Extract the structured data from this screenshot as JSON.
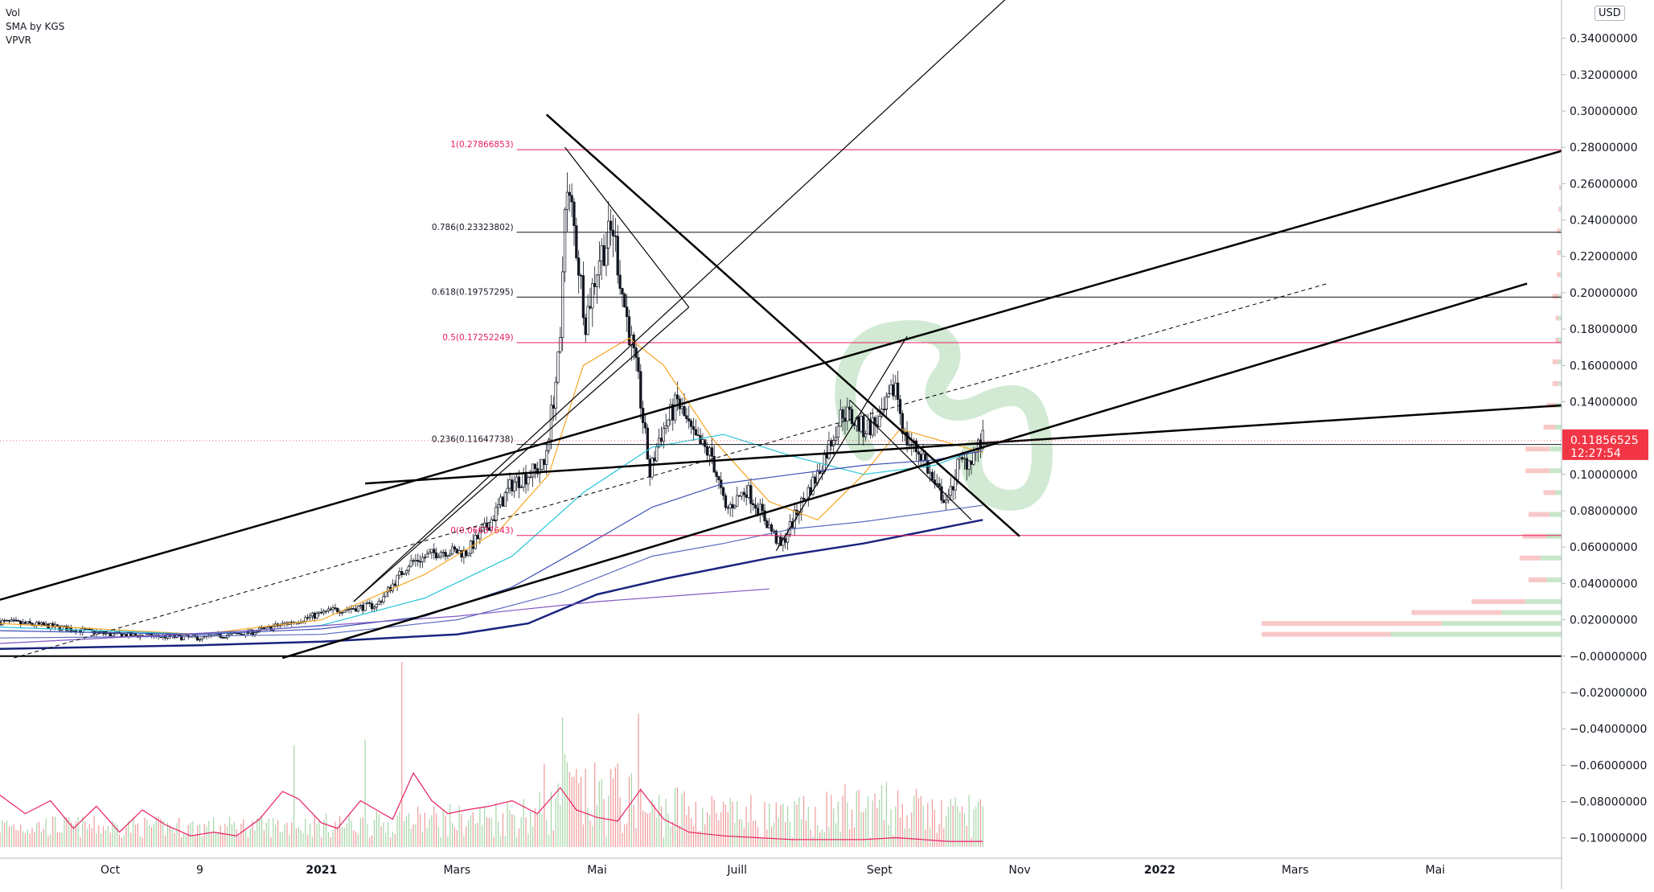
{
  "legend": [
    "Vol",
    "SMA by KGS",
    "VPVR"
  ],
  "currency": "USD",
  "last_price": {
    "value": 0.11856525,
    "label": "0.11856525",
    "countdown": "12:27:54",
    "color": "#f23645"
  },
  "colors": {
    "up": "#131722",
    "down": "#131722",
    "upVol": "#a5d6a7",
    "downVol": "#ef9a9a",
    "fib": "#e91e63",
    "fibBlack": "#131722",
    "trendline": "#000000",
    "volSma": "#e91e63",
    "vpUp": "#c8e6c9",
    "vpDown": "#f8c8c8"
  },
  "chart_data": {
    "type": "candlestick",
    "title": "",
    "y_axis_ticks": [
      "0.34000000",
      "0.32000000",
      "0.30000000",
      "0.28000000",
      "0.26000000",
      "0.24000000",
      "0.22000000",
      "0.20000000",
      "0.18000000",
      "0.16000000",
      "0.14000000",
      "0.12000000",
      "0.10000000",
      "0.08000000",
      "0.06000000",
      "0.04000000",
      "0.02000000",
      "−0.00000000",
      "−0.02000000",
      "−0.04000000",
      "−0.06000000",
      "−0.08000000",
      "−0.10000000"
    ],
    "x_axis_ticks": [
      {
        "label": "Oct",
        "date": "2020-10-01"
      },
      {
        "label": "9",
        "date": "2020-11-09"
      },
      {
        "label": "2021",
        "date": "2021-01-01"
      },
      {
        "label": "Mars",
        "date": "2021-03-01"
      },
      {
        "label": "Mai",
        "date": "2021-05-01"
      },
      {
        "label": "Juill",
        "date": "2021-07-01"
      },
      {
        "label": "Sept",
        "date": "2021-09-01"
      },
      {
        "label": "Nov",
        "date": "2021-11-01"
      },
      {
        "label": "2022",
        "date": "2022-01-01"
      },
      {
        "label": "Mars",
        "date": "2022-03-01"
      },
      {
        "label": "Mai",
        "date": "2022-05-01"
      }
    ],
    "ylim": [
      -0.105,
      0.35
    ],
    "x_range": [
      "2020-08-14",
      "2022-06-25"
    ],
    "price_path": [
      [
        "2020-08-14",
        0.019
      ],
      [
        "2020-09-01",
        0.017
      ],
      [
        "2020-10-01",
        0.012
      ],
      [
        "2020-11-09",
        0.01
      ],
      [
        "2020-12-01",
        0.013
      ],
      [
        "2020-12-20",
        0.019
      ],
      [
        "2021-01-05",
        0.025
      ],
      [
        "2021-01-25",
        0.028
      ],
      [
        "2021-02-08",
        0.051
      ],
      [
        "2021-02-22",
        0.058
      ],
      [
        "2021-03-05",
        0.057
      ],
      [
        "2021-03-15",
        0.073
      ],
      [
        "2021-03-25",
        0.095
      ],
      [
        "2021-04-08",
        0.105
      ],
      [
        "2021-04-15",
        0.17
      ],
      [
        "2021-04-17",
        0.255
      ],
      [
        "2021-04-20",
        0.245
      ],
      [
        "2021-04-26",
        0.185
      ],
      [
        "2021-05-02",
        0.22
      ],
      [
        "2021-05-08",
        0.235
      ],
      [
        "2021-05-12",
        0.2
      ],
      [
        "2021-05-19",
        0.15
      ],
      [
        "2021-05-24",
        0.1
      ],
      [
        "2021-05-28",
        0.12
      ],
      [
        "2021-06-05",
        0.14
      ],
      [
        "2021-06-12",
        0.12
      ],
      [
        "2021-06-20",
        0.11
      ],
      [
        "2021-06-26",
        0.08
      ],
      [
        "2021-07-05",
        0.092
      ],
      [
        "2021-07-12",
        0.078
      ],
      [
        "2021-07-20",
        0.06
      ],
      [
        "2021-07-28",
        0.082
      ],
      [
        "2021-08-05",
        0.1
      ],
      [
        "2021-08-16",
        0.135
      ],
      [
        "2021-08-25",
        0.125
      ],
      [
        "2021-09-02",
        0.13
      ],
      [
        "2021-09-08",
        0.15
      ],
      [
        "2021-09-12",
        0.12
      ],
      [
        "2021-09-20",
        0.11
      ],
      [
        "2021-09-25",
        0.093
      ],
      [
        "2021-10-01",
        0.085
      ],
      [
        "2021-10-05",
        0.105
      ],
      [
        "2021-10-10",
        0.108
      ],
      [
        "2021-10-16",
        0.1186
      ]
    ],
    "moving_averages": [
      {
        "color": "#f5a623",
        "points": [
          [
            "2020-08-14",
            0.018
          ],
          [
            "2020-11-09",
            0.012
          ],
          [
            "2021-01-01",
            0.02
          ],
          [
            "2021-02-15",
            0.045
          ],
          [
            "2021-03-20",
            0.07
          ],
          [
            "2021-04-10",
            0.1
          ],
          [
            "2021-04-25",
            0.16
          ],
          [
            "2021-05-15",
            0.175
          ],
          [
            "2021-05-30",
            0.16
          ],
          [
            "2021-06-20",
            0.12
          ],
          [
            "2021-07-15",
            0.085
          ],
          [
            "2021-08-05",
            0.075
          ],
          [
            "2021-08-25",
            0.1
          ],
          [
            "2021-09-10",
            0.125
          ],
          [
            "2021-10-16",
            0.112
          ]
        ]
      },
      {
        "color": "#26c6da",
        "points": [
          [
            "2020-08-14",
            0.016
          ],
          [
            "2020-11-09",
            0.012
          ],
          [
            "2021-01-01",
            0.017
          ],
          [
            "2021-02-15",
            0.032
          ],
          [
            "2021-03-25",
            0.055
          ],
          [
            "2021-04-25",
            0.09
          ],
          [
            "2021-05-25",
            0.115
          ],
          [
            "2021-06-25",
            0.122
          ],
          [
            "2021-07-25",
            0.11
          ],
          [
            "2021-08-25",
            0.1
          ],
          [
            "2021-09-25",
            0.105
          ],
          [
            "2021-10-16",
            0.115
          ]
        ]
      },
      {
        "color": "#3f51b5",
        "points": [
          [
            "2020-08-14",
            0.014
          ],
          [
            "2020-11-09",
            0.012
          ],
          [
            "2021-01-01",
            0.015
          ],
          [
            "2021-02-15",
            0.022
          ],
          [
            "2021-03-25",
            0.038
          ],
          [
            "2021-04-25",
            0.06
          ],
          [
            "2021-05-25",
            0.082
          ],
          [
            "2021-06-25",
            0.095
          ],
          [
            "2021-07-25",
            0.1
          ],
          [
            "2021-08-25",
            0.105
          ],
          [
            "2021-09-25",
            0.108
          ],
          [
            "2021-10-16",
            0.113
          ]
        ]
      },
      {
        "color": "#5c6bc0",
        "points": [
          [
            "2020-08-14",
            0.01
          ],
          [
            "2020-11-09",
            0.011
          ],
          [
            "2021-01-01",
            0.012
          ],
          [
            "2021-03-01",
            0.02
          ],
          [
            "2021-04-15",
            0.035
          ],
          [
            "2021-05-25",
            0.055
          ],
          [
            "2021-06-25",
            0.062
          ],
          [
            "2021-07-25",
            0.07
          ],
          [
            "2021-08-25",
            0.074
          ],
          [
            "2021-10-16",
            0.083
          ]
        ]
      },
      {
        "color": "#1a237e",
        "points": [
          [
            "2020-08-14",
            0.004
          ],
          [
            "2020-11-09",
            0.006
          ],
          [
            "2021-01-01",
            0.008
          ],
          [
            "2021-03-01",
            0.012
          ],
          [
            "2021-04-01",
            0.018
          ],
          [
            "2021-05-01",
            0.034
          ],
          [
            "2021-06-01",
            0.043
          ],
          [
            "2021-07-15",
            0.054
          ],
          [
            "2021-08-25",
            0.062
          ],
          [
            "2021-10-16",
            0.075
          ]
        ]
      },
      {
        "color": "#7e57c2",
        "points": [
          [
            "2020-08-14",
            0.007
          ],
          [
            "2020-12-01",
            0.014
          ],
          [
            "2021-03-01",
            0.022
          ],
          [
            "2021-05-01",
            0.03
          ],
          [
            "2021-07-15",
            0.037
          ]
        ]
      }
    ],
    "fib_levels": [
      {
        "label": "1(0.27866853)",
        "value": 0.27866853,
        "color": "#e91e63"
      },
      {
        "label": "0.786(0.23323802)",
        "value": 0.23323802,
        "color": "#131722"
      },
      {
        "label": "0.618(0.19757295)",
        "value": 0.19757295,
        "color": "#131722"
      },
      {
        "label": "0.5(0.17252249)",
        "value": 0.17252249,
        "color": "#e91e63"
      },
      {
        "label": "0.236(0.11647738)",
        "value": 0.11647738,
        "color": "#131722"
      },
      {
        "label": "0(0.06637643)",
        "value": 0.06637643,
        "color": "#e91e63"
      }
    ],
    "fib_start_date": "2021-04-17",
    "trendlines": [
      {
        "p1": [
          "2020-08-14",
          0.031
        ],
        "p2": [
          "2022-06-25",
          0.278
        ],
        "width": 2.5,
        "style": "solid"
      },
      {
        "p1": [
          "2021-01-20",
          0.095
        ],
        "p2": [
          "2022-06-25",
          0.138
        ],
        "width": 2.5,
        "style": "solid"
      },
      {
        "p1": [
          "2020-12-15",
          -0.001
        ],
        "p2": [
          "2022-06-10",
          0.205
        ],
        "width": 2.5,
        "style": "solid"
      },
      {
        "p1": [
          "2021-04-09",
          0.298
        ],
        "p2": [
          "2021-11-01",
          0.066
        ],
        "width": 2.5,
        "style": "solid"
      },
      {
        "p1": [
          "2020-08-20",
          -0.001
        ],
        "p2": [
          "2022-03-15",
          0.205
        ],
        "width": 1,
        "style": "dashed"
      },
      {
        "p1": [
          "2021-01-15",
          0.03
        ],
        "p2": [
          "2021-12-15",
          0.42
        ],
        "width": 1.2,
        "style": "solid"
      },
      {
        "p1": [
          "2021-04-17",
          0.28
        ],
        "p2": [
          "2021-06-10",
          0.192
        ],
        "width": 1.2,
        "style": "solid"
      },
      {
        "p1": [
          "2021-06-10",
          0.192
        ],
        "p2": [
          "2021-01-15",
          0.03
        ],
        "width": 1.2,
        "style": "solid"
      },
      {
        "p1": [
          "2021-07-18",
          0.058
        ],
        "p2": [
          "2021-09-13",
          0.176
        ],
        "width": 1.2,
        "style": "solid"
      },
      {
        "p1": [
          "2021-08-19",
          0.141
        ],
        "p2": [
          "2021-10-11",
          0.075
        ],
        "width": 1.2,
        "style": "solid"
      }
    ],
    "zero_line": 0,
    "volume": {
      "ylim_fraction": 0.17,
      "spikes": [
        [
          "2021-02-05",
          1.0
        ],
        [
          "2021-04-16",
          0.7
        ],
        [
          "2021-05-19",
          0.72
        ],
        [
          "2020-12-20",
          0.55
        ],
        [
          "2021-01-20",
          0.58
        ],
        [
          "2021-04-08",
          0.45
        ],
        [
          "2021-09-08",
          0.22
        ]
      ],
      "sma_points": [
        [
          "2020-08-14",
          0.28
        ],
        [
          "2020-08-25",
          0.18
        ],
        [
          "2020-09-05",
          0.25
        ],
        [
          "2020-09-15",
          0.1
        ],
        [
          "2020-09-25",
          0.22
        ],
        [
          "2020-10-05",
          0.08
        ],
        [
          "2020-10-15",
          0.2
        ],
        [
          "2020-10-25",
          0.12
        ],
        [
          "2020-11-05",
          0.06
        ],
        [
          "2020-11-15",
          0.08
        ],
        [
          "2020-11-25",
          0.06
        ],
        [
          "2020-12-05",
          0.15
        ],
        [
          "2020-12-15",
          0.3
        ],
        [
          "2020-12-22",
          0.26
        ],
        [
          "2021-01-01",
          0.13
        ],
        [
          "2021-01-08",
          0.1
        ],
        [
          "2021-01-18",
          0.25
        ],
        [
          "2021-01-25",
          0.2
        ],
        [
          "2021-02-01",
          0.15
        ],
        [
          "2021-02-10",
          0.4
        ],
        [
          "2021-02-18",
          0.25
        ],
        [
          "2021-02-25",
          0.18
        ],
        [
          "2021-03-05",
          0.2
        ],
        [
          "2021-03-15",
          0.22
        ],
        [
          "2021-03-25",
          0.25
        ],
        [
          "2021-04-05",
          0.18
        ],
        [
          "2021-04-15",
          0.32
        ],
        [
          "2021-04-22",
          0.2
        ],
        [
          "2021-05-01",
          0.16
        ],
        [
          "2021-05-10",
          0.14
        ],
        [
          "2021-05-20",
          0.31
        ],
        [
          "2021-05-30",
          0.15
        ],
        [
          "2021-06-10",
          0.08
        ],
        [
          "2021-06-25",
          0.06
        ],
        [
          "2021-07-10",
          0.05
        ],
        [
          "2021-07-25",
          0.04
        ],
        [
          "2021-08-10",
          0.04
        ],
        [
          "2021-08-25",
          0.04
        ],
        [
          "2021-09-08",
          0.05
        ],
        [
          "2021-09-20",
          0.04
        ],
        [
          "2021-10-01",
          0.03
        ],
        [
          "2021-10-16",
          0.03
        ]
      ]
    },
    "volume_profile": [
      {
        "price": 0.012,
        "up": 0.57,
        "down": 0.43
      },
      {
        "price": 0.018,
        "up": 0.4,
        "down": 0.6
      },
      {
        "price": 0.024,
        "up": 0.2,
        "down": 0.3
      },
      {
        "price": 0.03,
        "up": 0.12,
        "down": 0.18
      },
      {
        "price": 0.042,
        "up": 0.05,
        "down": 0.06
      },
      {
        "price": 0.054,
        "up": 0.07,
        "down": 0.07
      },
      {
        "price": 0.066,
        "up": 0.05,
        "down": 0.08
      },
      {
        "price": 0.078,
        "up": 0.04,
        "down": 0.07
      },
      {
        "price": 0.09,
        "up": 0.02,
        "down": 0.04
      },
      {
        "price": 0.102,
        "up": 0.04,
        "down": 0.08
      },
      {
        "price": 0.114,
        "up": 0.04,
        "down": 0.08
      },
      {
        "price": 0.126,
        "up": 0.02,
        "down": 0.04
      },
      {
        "price": 0.138,
        "up": 0.02,
        "down": 0.03
      },
      {
        "price": 0.15,
        "up": 0.01,
        "down": 0.02
      },
      {
        "price": 0.162,
        "up": 0.01,
        "down": 0.02
      },
      {
        "price": 0.174,
        "up": 0.01,
        "down": 0.01
      },
      {
        "price": 0.186,
        "up": 0.01,
        "down": 0.01
      },
      {
        "price": 0.198,
        "up": 0.01,
        "down": 0.02
      },
      {
        "price": 0.21,
        "up": 0.005,
        "down": 0.01
      },
      {
        "price": 0.222,
        "up": 0.005,
        "down": 0.01
      },
      {
        "price": 0.234,
        "up": 0.005,
        "down": 0.01
      },
      {
        "price": 0.246,
        "up": 0.005,
        "down": 0.005
      },
      {
        "price": 0.258,
        "up": 0.003,
        "down": 0.005
      }
    ]
  }
}
